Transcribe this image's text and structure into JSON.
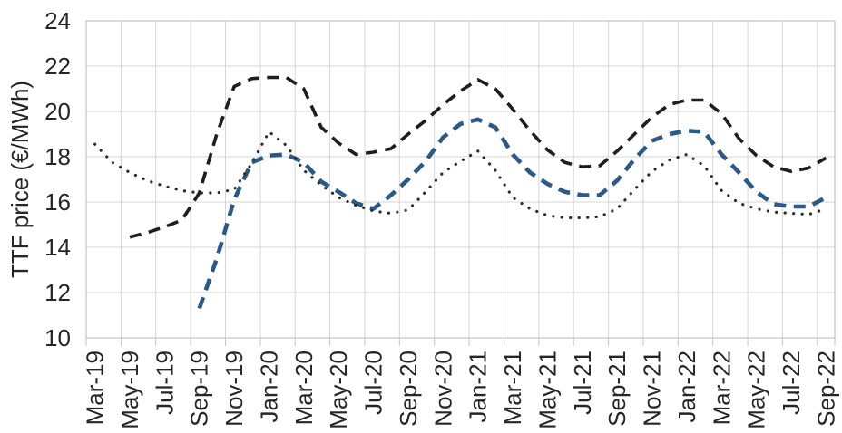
{
  "chart_data": {
    "type": "line",
    "title": "",
    "xlabel": "",
    "ylabel": "TTF price (€/MWh)",
    "ylim": [
      10,
      24
    ],
    "yticks": [
      10,
      12,
      14,
      16,
      18,
      20,
      22,
      24
    ],
    "x_label_interval": 2,
    "grid": "both",
    "legend_position": "none",
    "colors": {
      "gridline": "#d6d6d6",
      "axis_and_border": "#c3c3c3",
      "text": "#262626",
      "background": "#ffffff",
      "series_black": "#1e1e1e",
      "series_blue": "#2b5a87",
      "series_dotted": "#2e2e2e"
    },
    "categories": [
      "Mar-19",
      "Apr-19",
      "May-19",
      "Jun-19",
      "Jul-19",
      "Aug-19",
      "Sep-19",
      "Oct-19",
      "Nov-19",
      "Dec-19",
      "Jan-20",
      "Feb-20",
      "Mar-20",
      "Apr-20",
      "May-20",
      "Jun-20",
      "Jul-20",
      "Aug-20",
      "Sep-20",
      "Oct-20",
      "Nov-20",
      "Dec-20",
      "Jan-21",
      "Feb-21",
      "Mar-21",
      "Apr-21",
      "May-21",
      "Jun-21",
      "Jul-21",
      "Aug-21",
      "Sep-21",
      "Oct-21",
      "Nov-21",
      "Dec-21",
      "Jan-22",
      "Feb-22",
      "Mar-22",
      "Apr-22",
      "May-22",
      "Jun-22",
      "Jul-22",
      "Aug-22",
      "Sep-22"
    ],
    "series": [
      {
        "id": "upper-black-dashed",
        "line_style": "dash",
        "color": "#1e1e1e",
        "stroke_width": 3.6,
        "values": [
          null,
          null,
          14.45,
          14.65,
          14.9,
          15.2,
          16.4,
          19.0,
          21.1,
          21.45,
          21.5,
          21.5,
          21.0,
          19.3,
          18.6,
          18.1,
          18.2,
          18.35,
          19.0,
          19.6,
          20.3,
          20.9,
          21.4,
          21.0,
          20.1,
          19.15,
          18.3,
          17.75,
          17.55,
          17.6,
          18.25,
          19.0,
          19.75,
          20.3,
          20.5,
          20.5,
          19.9,
          18.8,
          18.05,
          17.55,
          17.35,
          17.5,
          17.95
        ]
      },
      {
        "id": "middle-blue-dashed",
        "line_style": "dash",
        "color": "#2b5a87",
        "stroke_width": 4.6,
        "values": [
          null,
          null,
          null,
          null,
          null,
          null,
          11.3,
          13.5,
          16.1,
          17.75,
          18.05,
          18.1,
          17.75,
          16.9,
          16.45,
          15.95,
          15.7,
          16.3,
          17.0,
          17.8,
          18.85,
          19.45,
          19.65,
          19.3,
          18.1,
          17.3,
          16.8,
          16.45,
          16.3,
          16.3,
          16.95,
          17.9,
          18.7,
          19.0,
          19.15,
          19.1,
          18.1,
          17.3,
          16.45,
          15.9,
          15.8,
          15.8,
          16.2
        ]
      },
      {
        "id": "lower-black-dotted",
        "line_style": "dot",
        "color": "#2e2e2e",
        "stroke_width": 3.2,
        "values": [
          18.55,
          17.75,
          17.3,
          16.95,
          16.7,
          16.5,
          16.4,
          16.4,
          16.55,
          17.7,
          19.1,
          18.5,
          17.4,
          16.75,
          16.2,
          15.85,
          15.6,
          15.5,
          15.65,
          16.45,
          17.3,
          17.8,
          18.25,
          17.4,
          16.2,
          15.7,
          15.4,
          15.3,
          15.3,
          15.35,
          15.7,
          16.55,
          17.35,
          17.85,
          18.1,
          17.6,
          16.5,
          15.95,
          15.7,
          15.55,
          15.5,
          15.45,
          15.7
        ]
      }
    ]
  }
}
